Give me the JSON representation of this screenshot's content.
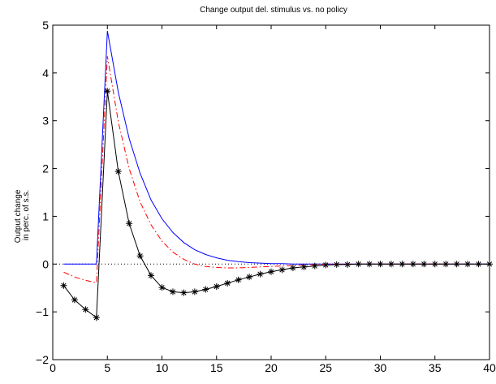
{
  "chart_data": {
    "type": "line",
    "title": "Change output del. stimulus vs. no policy",
    "xlabel": "",
    "ylabel": [
      "Output change",
      "in perc. of s.s."
    ],
    "xlim": [
      0,
      40
    ],
    "ylim": [
      -2,
      5
    ],
    "xticks": [
      0,
      5,
      10,
      15,
      20,
      25,
      30,
      35,
      40
    ],
    "yticks": [
      -2,
      -1,
      0,
      1,
      2,
      3,
      4,
      5
    ],
    "grid": false,
    "zero_line": {
      "y": 0,
      "style": "dotted",
      "color": "#000000"
    },
    "series": [
      {
        "color": "#0000ff",
        "line_style": "solid",
        "marker": "none",
        "x": [
          1,
          2,
          3,
          4,
          5,
          6,
          7,
          8,
          9,
          10,
          11,
          12,
          13,
          14,
          15,
          16,
          17,
          18,
          19,
          20,
          21,
          22,
          23,
          24,
          25,
          26,
          27,
          28,
          29,
          30,
          31,
          32,
          33,
          34,
          35,
          36,
          37,
          38,
          39,
          40
        ],
        "y": [
          0,
          0,
          0,
          0,
          4.88,
          3.6,
          2.63,
          1.9,
          1.34,
          0.95,
          0.66,
          0.45,
          0.3,
          0.2,
          0.13,
          0.08,
          0.05,
          0.03,
          0.02,
          0.01,
          0.01,
          0,
          0,
          0,
          0,
          0,
          0,
          0,
          0,
          0,
          0,
          0,
          0,
          0,
          0,
          0,
          0,
          0,
          0,
          0
        ]
      },
      {
        "color": "#ff0000",
        "line_style": "dash-dot",
        "marker": "none",
        "x": [
          1,
          2,
          3,
          4,
          5,
          6,
          7,
          8,
          9,
          10,
          11,
          12,
          13,
          14,
          15,
          16,
          17,
          18,
          19,
          20,
          21,
          22,
          23,
          24,
          25,
          26,
          27,
          28,
          29,
          30,
          31,
          32,
          33,
          34,
          35,
          36,
          37,
          38,
          39,
          40
        ],
        "y": [
          -0.17,
          -0.27,
          -0.34,
          -0.39,
          4.35,
          2.98,
          2.0,
          1.3,
          0.82,
          0.48,
          0.25,
          0.1,
          0.0,
          -0.05,
          -0.07,
          -0.08,
          -0.08,
          -0.07,
          -0.06,
          -0.05,
          -0.04,
          -0.03,
          -0.02,
          -0.01,
          0,
          0,
          0,
          0,
          0,
          0,
          0,
          0,
          0,
          0,
          0,
          0,
          0,
          0,
          0,
          0
        ]
      },
      {
        "color": "#000000",
        "line_style": "solid",
        "marker": "asterisk",
        "x": [
          1,
          2,
          3,
          4,
          5,
          6,
          7,
          8,
          9,
          10,
          11,
          12,
          13,
          14,
          15,
          16,
          17,
          18,
          19,
          20,
          21,
          22,
          23,
          24,
          25,
          26,
          27,
          28,
          29,
          30,
          31,
          32,
          33,
          34,
          35,
          36,
          37,
          38,
          39,
          40
        ],
        "y": [
          -0.45,
          -0.75,
          -0.95,
          -1.12,
          3.62,
          1.94,
          0.85,
          0.17,
          -0.24,
          -0.49,
          -0.58,
          -0.6,
          -0.58,
          -0.53,
          -0.47,
          -0.4,
          -0.33,
          -0.27,
          -0.21,
          -0.16,
          -0.12,
          -0.08,
          -0.06,
          -0.04,
          -0.02,
          -0.01,
          -0.01,
          0,
          0,
          0,
          0,
          0,
          0,
          0,
          0,
          0,
          0,
          0,
          0,
          0
        ]
      }
    ]
  }
}
